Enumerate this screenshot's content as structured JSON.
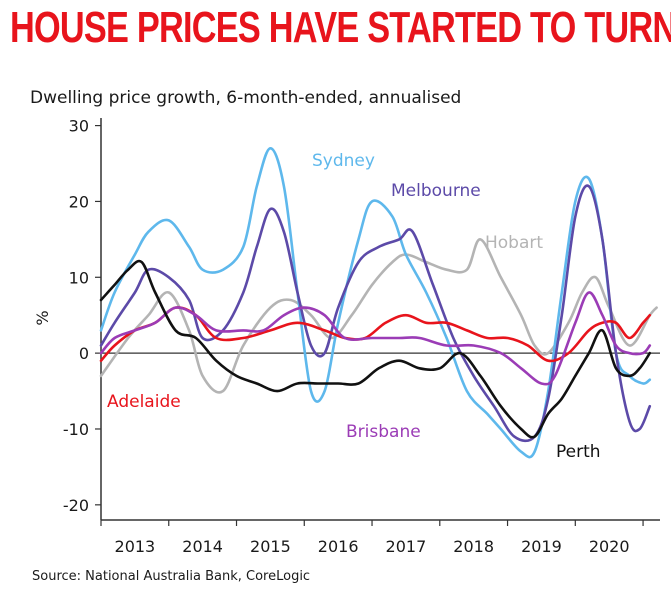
{
  "headline": "HOUSE PRICES HAVE STARTED TO TURN",
  "source": "Source: National Australia Bank, CoreLogic",
  "chart_data": {
    "type": "line",
    "title": "Dwelling price growth, 6-month-ended, annualised",
    "xlabel": "",
    "ylabel": "%",
    "xlim": [
      2012.5,
      2020.75
    ],
    "ylim": [
      -22,
      31
    ],
    "yticks": [
      30,
      20,
      10,
      0,
      -10,
      -20
    ],
    "ytick_labels": [
      "30",
      "20",
      "10",
      "0",
      "-10",
      "-20"
    ],
    "xticks": [
      2013,
      2014,
      2015,
      2016,
      2017,
      2018,
      2019,
      2020
    ],
    "xtick_labels": [
      "2013",
      "2014",
      "2015",
      "2016",
      "2017",
      "2018",
      "2019",
      "2020"
    ],
    "zero_line": true,
    "series": [
      {
        "name": "Hobart",
        "color": "#b4b4b4",
        "points": [
          [
            2012.5,
            -3
          ],
          [
            2012.9,
            2
          ],
          [
            2013.2,
            5
          ],
          [
            2013.5,
            8
          ],
          [
            2013.8,
            3
          ],
          [
            2014.0,
            -3
          ],
          [
            2014.3,
            -5
          ],
          [
            2014.6,
            1
          ],
          [
            2015.0,
            6
          ],
          [
            2015.3,
            7
          ],
          [
            2015.6,
            5
          ],
          [
            2015.9,
            2
          ],
          [
            2016.2,
            5
          ],
          [
            2016.5,
            9
          ],
          [
            2016.8,
            12
          ],
          [
            2017.0,
            13
          ],
          [
            2017.3,
            12
          ],
          [
            2017.6,
            11
          ],
          [
            2017.9,
            11
          ],
          [
            2018.1,
            15
          ],
          [
            2018.4,
            10
          ],
          [
            2018.7,
            5
          ],
          [
            2018.9,
            1
          ],
          [
            2019.1,
            0
          ],
          [
            2019.4,
            4
          ],
          [
            2019.6,
            8
          ],
          [
            2019.8,
            10
          ],
          [
            2020.0,
            6
          ],
          [
            2020.3,
            1
          ],
          [
            2020.6,
            5
          ],
          [
            2020.7,
            6
          ]
        ]
      },
      {
        "name": "Sydney",
        "color": "#5eb8ec",
        "points": [
          [
            2012.5,
            3
          ],
          [
            2012.7,
            8
          ],
          [
            2013.0,
            13
          ],
          [
            2013.2,
            16
          ],
          [
            2013.5,
            17.5
          ],
          [
            2013.8,
            14
          ],
          [
            2014.0,
            11
          ],
          [
            2014.3,
            11
          ],
          [
            2014.6,
            14
          ],
          [
            2014.8,
            22
          ],
          [
            2015.0,
            27
          ],
          [
            2015.2,
            22
          ],
          [
            2015.4,
            8
          ],
          [
            2015.6,
            -5
          ],
          [
            2015.8,
            -5
          ],
          [
            2016.0,
            4
          ],
          [
            2016.3,
            15
          ],
          [
            2016.5,
            20
          ],
          [
            2016.8,
            18
          ],
          [
            2017.0,
            13
          ],
          [
            2017.3,
            8
          ],
          [
            2017.6,
            2
          ],
          [
            2017.9,
            -5
          ],
          [
            2018.2,
            -8
          ],
          [
            2018.4,
            -10
          ],
          [
            2018.7,
            -13
          ],
          [
            2018.9,
            -13
          ],
          [
            2019.1,
            -5
          ],
          [
            2019.3,
            8
          ],
          [
            2019.5,
            20
          ],
          [
            2019.7,
            23
          ],
          [
            2019.9,
            15
          ],
          [
            2020.1,
            0
          ],
          [
            2020.3,
            -3
          ],
          [
            2020.5,
            -4
          ],
          [
            2020.6,
            -3.5
          ]
        ]
      },
      {
        "name": "Melbourne",
        "color": "#5c4aa8",
        "points": [
          [
            2012.5,
            1
          ],
          [
            2012.7,
            4
          ],
          [
            2013.0,
            8
          ],
          [
            2013.2,
            11
          ],
          [
            2013.5,
            10
          ],
          [
            2013.8,
            7
          ],
          [
            2014.0,
            2
          ],
          [
            2014.3,
            3
          ],
          [
            2014.6,
            8
          ],
          [
            2014.8,
            14
          ],
          [
            2015.0,
            19
          ],
          [
            2015.2,
            16
          ],
          [
            2015.4,
            8
          ],
          [
            2015.6,
            1
          ],
          [
            2015.8,
            0
          ],
          [
            2016.0,
            6
          ],
          [
            2016.3,
            12
          ],
          [
            2016.6,
            14
          ],
          [
            2016.9,
            15
          ],
          [
            2017.1,
            16
          ],
          [
            2017.4,
            9
          ],
          [
            2017.7,
            2
          ],
          [
            2018.0,
            -3
          ],
          [
            2018.3,
            -7
          ],
          [
            2018.6,
            -11
          ],
          [
            2018.9,
            -11
          ],
          [
            2019.1,
            -6
          ],
          [
            2019.3,
            5
          ],
          [
            2019.5,
            18
          ],
          [
            2019.7,
            22
          ],
          [
            2019.9,
            15
          ],
          [
            2020.1,
            0
          ],
          [
            2020.3,
            -9
          ],
          [
            2020.45,
            -10
          ],
          [
            2020.6,
            -7
          ]
        ]
      },
      {
        "name": "Adelaide",
        "color": "#e8141c",
        "points": [
          [
            2012.5,
            -1
          ],
          [
            2012.7,
            1
          ],
          [
            2013.0,
            3
          ],
          [
            2013.3,
            4
          ],
          [
            2013.6,
            6
          ],
          [
            2013.9,
            5
          ],
          [
            2014.2,
            2
          ],
          [
            2014.6,
            2
          ],
          [
            2015.0,
            3
          ],
          [
            2015.4,
            4
          ],
          [
            2015.8,
            3
          ],
          [
            2016.1,
            2
          ],
          [
            2016.4,
            2
          ],
          [
            2016.7,
            4
          ],
          [
            2017.0,
            5
          ],
          [
            2017.3,
            4
          ],
          [
            2017.6,
            4
          ],
          [
            2017.9,
            3
          ],
          [
            2018.2,
            2
          ],
          [
            2018.5,
            2
          ],
          [
            2018.8,
            1
          ],
          [
            2019.1,
            -1
          ],
          [
            2019.4,
            0
          ],
          [
            2019.7,
            3
          ],
          [
            2019.9,
            4
          ],
          [
            2020.1,
            4
          ],
          [
            2020.3,
            2
          ],
          [
            2020.5,
            4
          ],
          [
            2020.6,
            5
          ]
        ]
      },
      {
        "name": "Brisbane",
        "color": "#9b3cb6",
        "points": [
          [
            2012.5,
            0
          ],
          [
            2012.7,
            2
          ],
          [
            2013.0,
            3
          ],
          [
            2013.3,
            4
          ],
          [
            2013.6,
            6
          ],
          [
            2013.9,
            5
          ],
          [
            2014.2,
            3
          ],
          [
            2014.6,
            3
          ],
          [
            2014.9,
            3
          ],
          [
            2015.2,
            5
          ],
          [
            2015.5,
            6
          ],
          [
            2015.8,
            5
          ],
          [
            2016.1,
            2
          ],
          [
            2016.5,
            2
          ],
          [
            2016.9,
            2
          ],
          [
            2017.2,
            2
          ],
          [
            2017.6,
            1
          ],
          [
            2018.0,
            1
          ],
          [
            2018.4,
            0
          ],
          [
            2018.7,
            -2
          ],
          [
            2019.0,
            -4
          ],
          [
            2019.2,
            -3
          ],
          [
            2019.5,
            4
          ],
          [
            2019.7,
            8
          ],
          [
            2019.9,
            5
          ],
          [
            2020.1,
            1
          ],
          [
            2020.3,
            0
          ],
          [
            2020.5,
            0
          ],
          [
            2020.6,
            1
          ]
        ]
      },
      {
        "name": "Perth",
        "color": "#111111",
        "points": [
          [
            2012.5,
            7
          ],
          [
            2012.7,
            9
          ],
          [
            2012.9,
            11
          ],
          [
            2013.1,
            12
          ],
          [
            2013.3,
            8
          ],
          [
            2013.6,
            3
          ],
          [
            2013.9,
            2
          ],
          [
            2014.2,
            -1
          ],
          [
            2014.5,
            -3
          ],
          [
            2014.8,
            -4
          ],
          [
            2015.1,
            -5
          ],
          [
            2015.4,
            -4
          ],
          [
            2015.7,
            -4
          ],
          [
            2016.0,
            -4
          ],
          [
            2016.3,
            -4
          ],
          [
            2016.6,
            -2
          ],
          [
            2016.9,
            -1
          ],
          [
            2017.2,
            -2
          ],
          [
            2017.5,
            -2
          ],
          [
            2017.8,
            0
          ],
          [
            2018.1,
            -3
          ],
          [
            2018.4,
            -7
          ],
          [
            2018.7,
            -10
          ],
          [
            2018.9,
            -11
          ],
          [
            2019.1,
            -8
          ],
          [
            2019.3,
            -6
          ],
          [
            2019.5,
            -3
          ],
          [
            2019.7,
            0
          ],
          [
            2019.9,
            3
          ],
          [
            2020.1,
            -2
          ],
          [
            2020.3,
            -3
          ],
          [
            2020.45,
            -2
          ],
          [
            2020.6,
            0
          ]
        ]
      }
    ],
    "labels": [
      {
        "text": "Sydney",
        "color": "#5eb8ec"
      },
      {
        "text": "Melbourne",
        "color": "#5c4aa8"
      },
      {
        "text": "Hobart",
        "color": "#b4b4b4"
      },
      {
        "text": "Adelaide",
        "color": "#e8141c"
      },
      {
        "text": "Brisbane",
        "color": "#9b3cb6"
      },
      {
        "text": "Perth",
        "color": "#111111"
      }
    ]
  }
}
